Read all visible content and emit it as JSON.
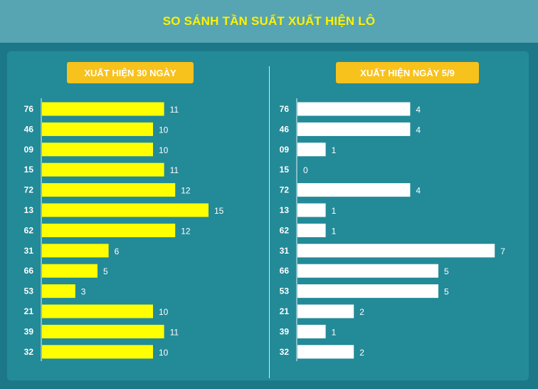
{
  "header": {
    "title": "SO SÁNH TẦN SUẤT XUẤT HIỆN LÔ"
  },
  "colors": {
    "left_bar": "#ffff00",
    "right_bar": "#ffffff",
    "chip": "#f7c21c",
    "title": "#fff200"
  },
  "chart_data": [
    {
      "type": "bar",
      "orientation": "horizontal",
      "title": "XUẤT HIỆN 30 NGÀY",
      "categories": [
        "76",
        "46",
        "09",
        "15",
        "72",
        "13",
        "62",
        "31",
        "66",
        "53",
        "21",
        "39",
        "32"
      ],
      "values": [
        11,
        10,
        10,
        11,
        12,
        15,
        12,
        6,
        5,
        3,
        10,
        11,
        10
      ],
      "xlim": [
        0,
        15
      ]
    },
    {
      "type": "bar",
      "orientation": "horizontal",
      "title": "XUẤT HIỆN NGÀY 5/9",
      "categories": [
        "76",
        "46",
        "09",
        "15",
        "72",
        "13",
        "62",
        "31",
        "66",
        "53",
        "21",
        "39",
        "32"
      ],
      "values": [
        4,
        4,
        1,
        0,
        4,
        1,
        1,
        7,
        5,
        5,
        2,
        1,
        2
      ],
      "xlim": [
        0,
        7
      ]
    }
  ]
}
